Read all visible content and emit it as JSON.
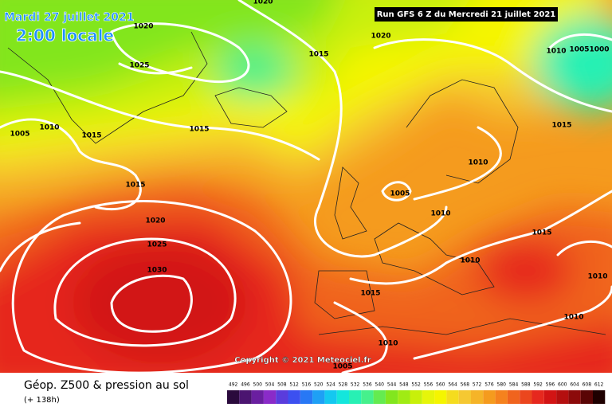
{
  "header": {
    "date": "Mardi 27 juillet 2021",
    "local_time": "2:00 locale",
    "run": "Run GFS 6 Z du Mercredi 21 juillet 2021"
  },
  "map": {
    "copyright": "Copyright © 2021 Meteociel.fr",
    "isobar_labels": [
      1020,
      1020,
      1025,
      1015,
      1020,
      1005,
      1010,
      1015,
      1015,
      1015,
      1020,
      1025,
      1030,
      1005,
      1010,
      1010,
      1015,
      1010,
      1005,
      1000,
      1015,
      1010,
      1010,
      1015,
      1010,
      1005,
      1010
    ]
  },
  "footer": {
    "title": "Géop. Z500 & pression au sol",
    "lead": "(+ 138h)"
  },
  "legend": {
    "labels": [
      492,
      496,
      500,
      504,
      508,
      512,
      516,
      520,
      524,
      528,
      532,
      536,
      540,
      544,
      548,
      552,
      556,
      560,
      564,
      568,
      572,
      576,
      580,
      584,
      588,
      592,
      596,
      600,
      604,
      608,
      612
    ],
    "colors": [
      "#2a0a3c",
      "#4b1470",
      "#6a1fa0",
      "#8a2bc8",
      "#5a3cdc",
      "#3c50f0",
      "#2878f5",
      "#1ea0f5",
      "#14c8f0",
      "#14e6dc",
      "#28f0b4",
      "#46f08c",
      "#64eb50",
      "#82e61e",
      "#a0eb14",
      "#c8f00a",
      "#e6f50a",
      "#f5f500",
      "#f5dc1e",
      "#f5c832",
      "#f5b428",
      "#f59b1e",
      "#f5821e",
      "#f0641e",
      "#eb461e",
      "#e6281e",
      "#d21414",
      "#b40f0f",
      "#8c0a0a",
      "#5a0505",
      "#1e0000"
    ]
  }
}
